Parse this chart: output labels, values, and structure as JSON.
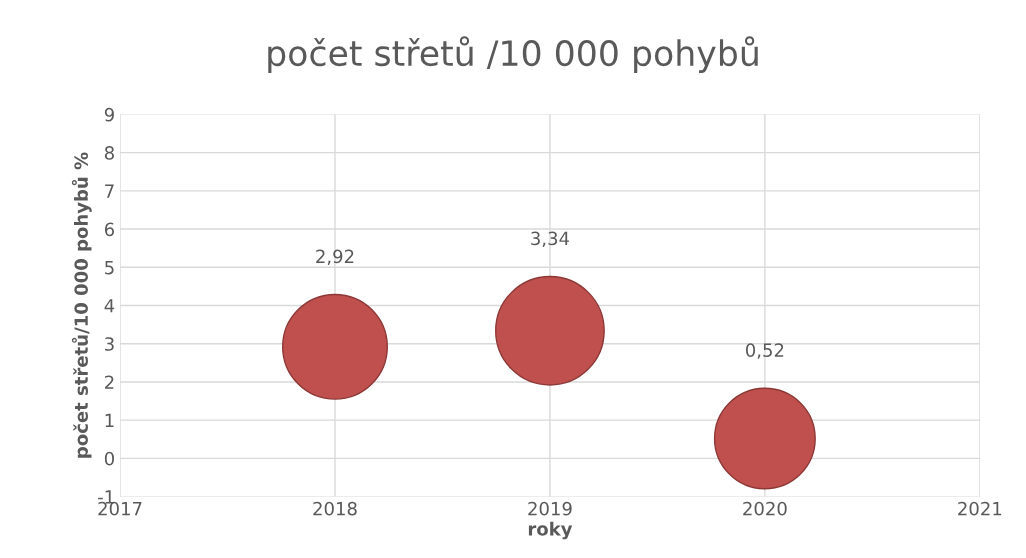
{
  "chart_data": {
    "type": "bubble",
    "title": "počet střetů /10 000 pohybů",
    "xlabel": "roky",
    "ylabel": "počet střetů/10 000 pohybů %",
    "x": [
      2018,
      2019,
      2020
    ],
    "series": [
      {
        "color": "#c0504d",
        "values": [
          2.92,
          3.34,
          0.52
        ],
        "sizes": [
          0.93,
          1,
          0.86
        ],
        "value_labels": [
          "2,92",
          "3,34",
          "0,52"
        ]
      }
    ],
    "xlim": [
      2017,
      2021
    ],
    "xticks": [
      2017,
      2018,
      2019,
      2020,
      2021
    ],
    "ylim": [
      -1,
      9
    ],
    "yticks": [
      -1,
      0,
      1,
      2,
      3,
      4,
      5,
      6,
      7,
      8,
      9
    ],
    "grid": true
  }
}
